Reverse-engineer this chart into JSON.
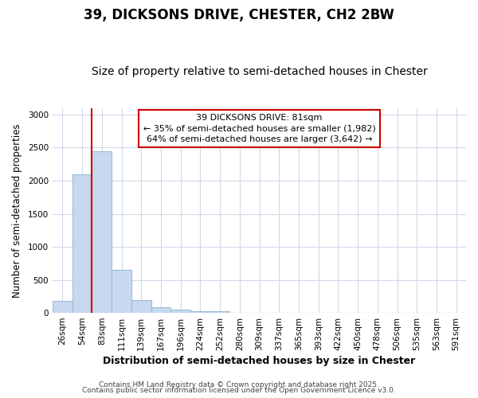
{
  "title1": "39, DICKSONS DRIVE, CHESTER, CH2 2BW",
  "title2": "Size of property relative to semi-detached houses in Chester",
  "xlabel": "Distribution of semi-detached houses by size in Chester",
  "ylabel": "Number of semi-detached properties",
  "categories": [
    "26sqm",
    "54sqm",
    "83sqm",
    "111sqm",
    "139sqm",
    "167sqm",
    "196sqm",
    "224sqm",
    "252sqm",
    "280sqm",
    "309sqm",
    "337sqm",
    "365sqm",
    "393sqm",
    "422sqm",
    "450sqm",
    "478sqm",
    "506sqm",
    "535sqm",
    "563sqm",
    "591sqm"
  ],
  "values": [
    180,
    2100,
    2440,
    650,
    195,
    90,
    45,
    25,
    20,
    2,
    0,
    0,
    0,
    0,
    0,
    0,
    0,
    0,
    0,
    0,
    0
  ],
  "bar_color": "#c8d8ee",
  "bar_edge_color": "#9bbcd8",
  "bar_linewidth": 0.8,
  "vline_x_index": 2,
  "vline_color": "#cc0000",
  "annotation_title": "39 DICKSONS DRIVE: 81sqm",
  "annotation_line1": "← 35% of semi-detached houses are smaller (1,982)",
  "annotation_line2": "64% of semi-detached houses are larger (3,642) →",
  "annotation_box_facecolor": "#ffffff",
  "annotation_box_edgecolor": "#cc0000",
  "ylim": [
    0,
    3100
  ],
  "yticks": [
    0,
    500,
    1000,
    1500,
    2000,
    2500,
    3000
  ],
  "grid_color": "#d0d8e8",
  "background_color": "#ffffff",
  "fig_background": "#ffffff",
  "footer1": "Contains HM Land Registry data © Crown copyright and database right 2025.",
  "footer2": "Contains public sector information licensed under the Open Government Licence v3.0.",
  "title1_fontsize": 12,
  "title2_fontsize": 10,
  "xlabel_fontsize": 9,
  "ylabel_fontsize": 8.5,
  "tick_fontsize": 7.5,
  "annotation_fontsize": 8,
  "footer_fontsize": 6.5
}
